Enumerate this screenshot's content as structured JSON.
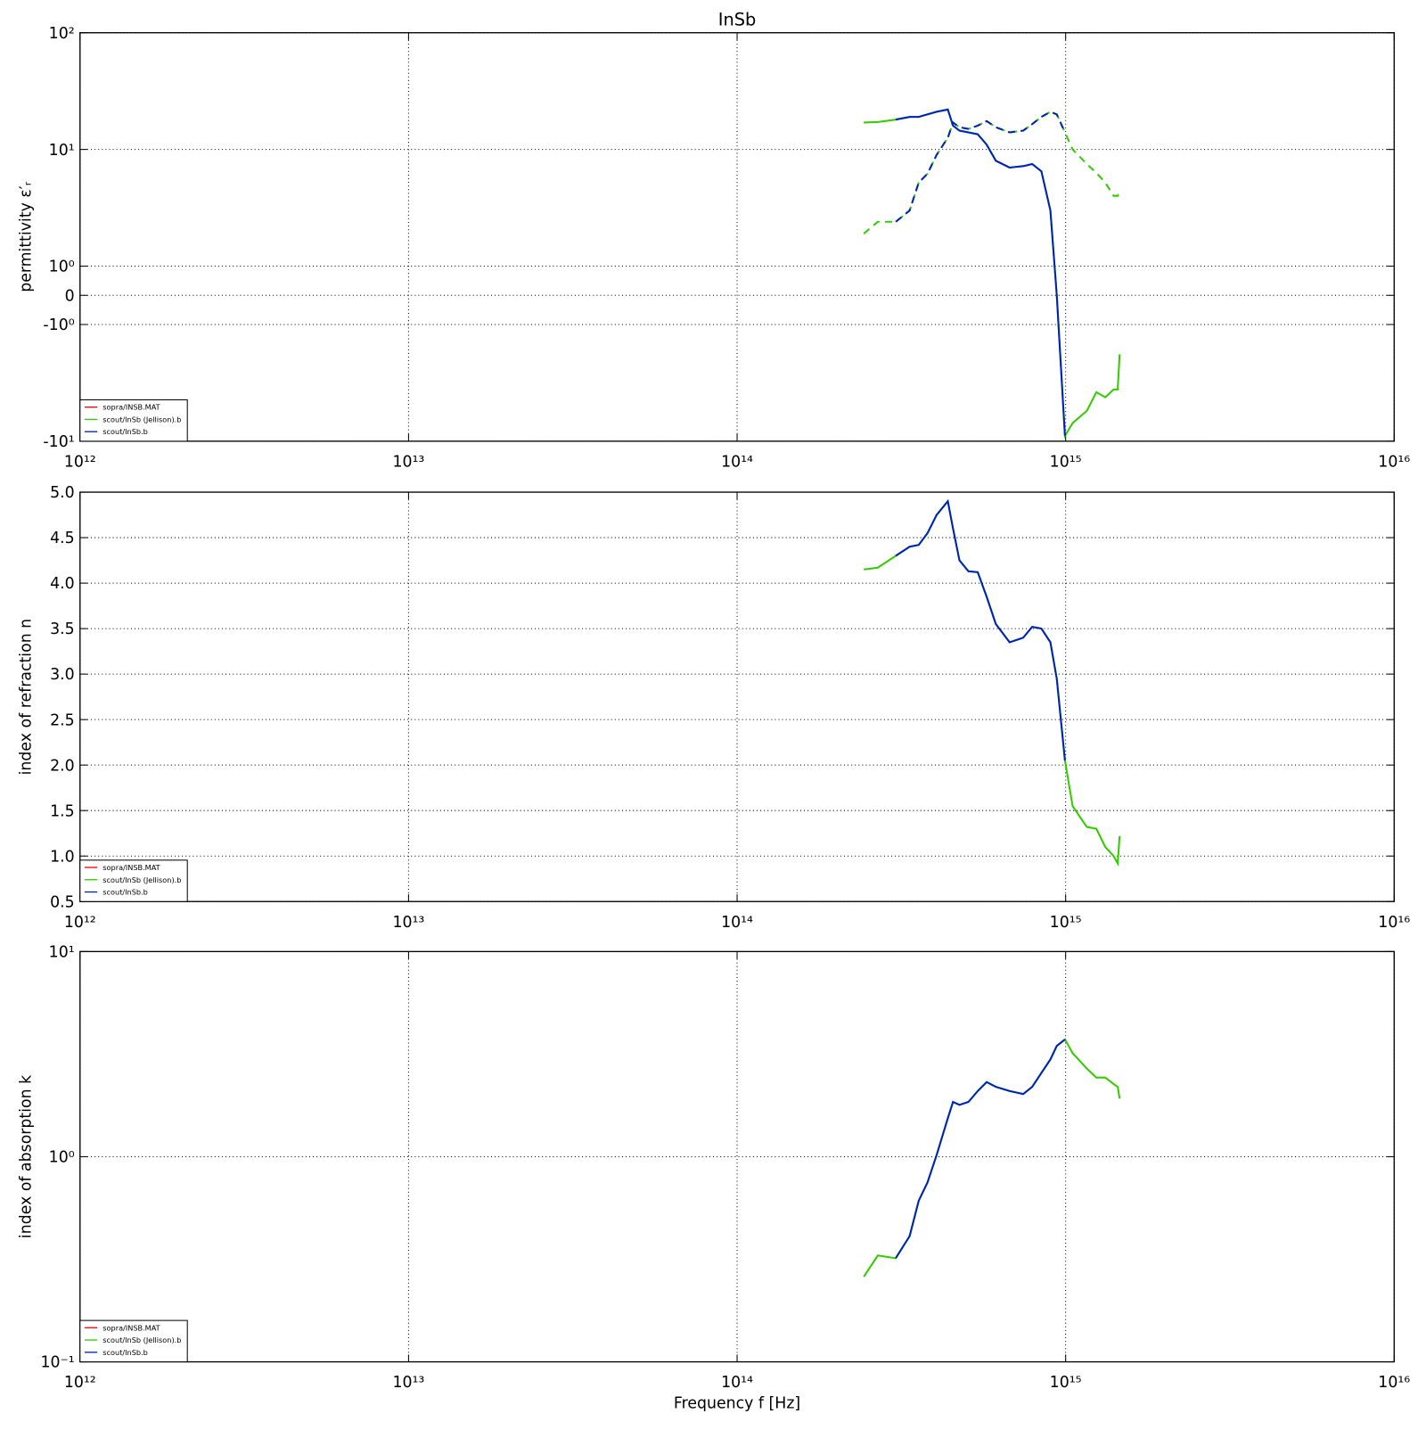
{
  "chart_data": [
    {
      "type": "line",
      "title": "InSb",
      "ylabel": "permittivity ε′ᵣ",
      "xscale": "log",
      "yscale": "symlog",
      "grid": true,
      "legend": "lower left",
      "xlim": [
        1000000000000.0,
        1e+16
      ],
      "xticks": [
        {
          "value": 1000000000000.0,
          "label": "10¹²"
        },
        {
          "value": 10000000000000.0,
          "label": "10¹³"
        },
        {
          "value": 100000000000000.0,
          "label": "10¹⁴"
        },
        {
          "value": 1000000000000000.0,
          "label": "10¹⁵"
        },
        {
          "value": 1e+16,
          "label": "10¹⁶"
        }
      ],
      "ylim": [
        -10,
        100
      ],
      "yticks": [
        {
          "value": 100,
          "label": "10²"
        },
        {
          "value": 10,
          "label": "10¹"
        },
        {
          "value": 1,
          "label": "10⁰"
        },
        0,
        {
          "value": -1,
          "label": "-10⁰"
        },
        {
          "value": -10,
          "label": "-10¹"
        }
      ],
      "imag_linestyle": "dashed",
      "series": [
        {
          "name": "sopra/INSB.MAT",
          "color": "#ff0000",
          "x": [],
          "values": [],
          "imag_values": []
        },
        {
          "name": "scout/InSb (Jellison).b",
          "color": "#33cc00",
          "x": [
            243000000000000.0,
            268000000000000.0,
            304000000000000.0,
            335000000000000.0,
            357000000000000.0,
            380000000000000.0,
            405000000000000.0,
            438000000000000.0,
            454000000000000.0,
            475000000000000.0,
            506000000000000.0,
            540000000000000.0,
            575000000000000.0,
            613000000000000.0,
            675000000000000.0,
            743000000000000.0,
            791000000000000.0,
            844000000000000.0,
            899000000000000.0,
            940000000000000.0,
            995000000000000.0,
            1050000000000000.0,
            1160000000000000.0,
            1240000000000000.0,
            1320000000000000.0,
            1400000000000000.0,
            1440000000000000.0,
            1460000000000000.0
          ],
          "values": [
            17,
            17.2,
            18,
            19,
            19,
            20,
            21,
            22,
            16,
            14.5,
            14,
            13.5,
            11,
            8,
            7,
            7.2,
            7.5,
            6.5,
            3,
            0,
            -9,
            -7,
            -5.5,
            -3.8,
            -4.2,
            -3.6,
            -3.6,
            -1.8
          ],
          "imag_values": [
            1.9,
            2.4,
            2.4,
            3,
            5.2,
            6.2,
            9,
            12.6,
            17,
            15.5,
            15,
            16,
            17.5,
            15.5,
            14,
            14.5,
            16.5,
            19,
            21,
            20,
            14,
            10,
            7.5,
            6.3,
            5.2,
            4,
            4,
            4.5
          ]
        },
        {
          "name": "scout/InSb.b",
          "color": "#0022bb",
          "x": [
            304000000000000.0,
            335000000000000.0,
            357000000000000.0,
            380000000000000.0,
            405000000000000.0,
            438000000000000.0,
            454000000000000.0,
            475000000000000.0,
            506000000000000.0,
            540000000000000.0,
            575000000000000.0,
            613000000000000.0,
            675000000000000.0,
            743000000000000.0,
            791000000000000.0,
            844000000000000.0,
            899000000000000.0,
            940000000000000.0,
            995000000000000.0
          ],
          "values": [
            18,
            19,
            19,
            20,
            21,
            22,
            16,
            14.5,
            14,
            13.5,
            11,
            8,
            7,
            7.2,
            7.5,
            6.5,
            3,
            0,
            -9
          ],
          "imag_values": [
            2.4,
            3,
            5.2,
            6.2,
            9,
            12.6,
            17,
            15.5,
            15,
            16,
            17.5,
            15.5,
            14,
            14.5,
            16.5,
            19,
            21,
            20,
            14
          ]
        }
      ]
    },
    {
      "type": "line",
      "ylabel": "index of refraction n",
      "xscale": "log",
      "yscale": "linear",
      "grid": true,
      "legend": "lower left",
      "xlim": [
        1000000000000.0,
        1e+16
      ],
      "xticks": [
        {
          "value": 1000000000000.0,
          "label": "10¹²"
        },
        {
          "value": 10000000000000.0,
          "label": "10¹³"
        },
        {
          "value": 100000000000000.0,
          "label": "10¹⁴"
        },
        {
          "value": 1000000000000000.0,
          "label": "10¹⁵"
        },
        {
          "value": 1e+16,
          "label": "10¹⁶"
        }
      ],
      "ylim": [
        0.5,
        5
      ],
      "yticks": [
        {
          "value": 5,
          "label": "5.0"
        },
        4.5,
        {
          "value": 4,
          "label": "4.0"
        },
        3.5,
        {
          "value": 3,
          "label": "3.0"
        },
        2.5,
        {
          "value": 2,
          "label": "2.0"
        },
        1.5,
        {
          "value": 1,
          "label": "1.0"
        },
        0.5
      ],
      "series": [
        {
          "name": "sopra/INSB.MAT",
          "color": "#ff0000",
          "x": [],
          "values": []
        },
        {
          "name": "scout/InSb (Jellison).b",
          "color": "#33cc00",
          "x": [
            243000000000000.0,
            268000000000000.0,
            304000000000000.0,
            335000000000000.0,
            357000000000000.0,
            380000000000000.0,
            405000000000000.0,
            438000000000000.0,
            454000000000000.0,
            475000000000000.0,
            506000000000000.0,
            540000000000000.0,
            575000000000000.0,
            613000000000000.0,
            675000000000000.0,
            743000000000000.0,
            791000000000000.0,
            844000000000000.0,
            899000000000000.0,
            940000000000000.0,
            995000000000000.0,
            1050000000000000.0,
            1160000000000000.0,
            1240000000000000.0,
            1320000000000000.0,
            1400000000000000.0,
            1440000000000000.0,
            1460000000000000.0
          ],
          "values": [
            4.15,
            4.17,
            4.3,
            4.4,
            4.42,
            4.55,
            4.75,
            4.9,
            4.6,
            4.25,
            4.13,
            4.12,
            3.85,
            3.55,
            3.35,
            3.4,
            3.52,
            3.5,
            3.35,
            2.95,
            2.05,
            1.55,
            1.32,
            1.3,
            1.1,
            1,
            0.92,
            1.22
          ]
        },
        {
          "name": "scout/InSb.b",
          "color": "#0022bb",
          "x": [
            304000000000000.0,
            335000000000000.0,
            357000000000000.0,
            380000000000000.0,
            405000000000000.0,
            438000000000000.0,
            454000000000000.0,
            475000000000000.0,
            506000000000000.0,
            540000000000000.0,
            575000000000000.0,
            613000000000000.0,
            675000000000000.0,
            743000000000000.0,
            791000000000000.0,
            844000000000000.0,
            899000000000000.0,
            940000000000000.0,
            995000000000000.0
          ],
          "values": [
            4.3,
            4.4,
            4.42,
            4.55,
            4.75,
            4.9,
            4.6,
            4.25,
            4.13,
            4.12,
            3.85,
            3.55,
            3.35,
            3.4,
            3.52,
            3.5,
            3.35,
            2.95,
            2.05
          ]
        }
      ]
    },
    {
      "type": "line",
      "ylabel": "index of absorption k",
      "xlabel": "Frequency f [Hz]",
      "xscale": "log",
      "yscale": "log",
      "grid": true,
      "legend": "lower left",
      "xlim": [
        1000000000000.0,
        1e+16
      ],
      "xticks": [
        {
          "value": 1000000000000.0,
          "label": "10¹²"
        },
        {
          "value": 10000000000000.0,
          "label": "10¹³"
        },
        {
          "value": 100000000000000.0,
          "label": "10¹⁴"
        },
        {
          "value": 1000000000000000.0,
          "label": "10¹⁵"
        },
        {
          "value": 1e+16,
          "label": "10¹⁶"
        }
      ],
      "ylim": [
        0.1,
        10
      ],
      "yticks": [
        {
          "value": 10,
          "label": "10¹"
        },
        {
          "value": 1,
          "label": "10⁰"
        },
        {
          "value": 0.1,
          "label": "10⁻¹"
        }
      ],
      "series": [
        {
          "name": "sopra/INSB.MAT",
          "color": "#ff0000",
          "x": [],
          "values": []
        },
        {
          "name": "scout/InSb (Jellison).b",
          "color": "#33cc00",
          "x": [
            243000000000000.0,
            268000000000000.0,
            304000000000000.0,
            335000000000000.0,
            357000000000000.0,
            380000000000000.0,
            405000000000000.0,
            438000000000000.0,
            454000000000000.0,
            475000000000000.0,
            506000000000000.0,
            540000000000000.0,
            575000000000000.0,
            613000000000000.0,
            675000000000000.0,
            743000000000000.0,
            791000000000000.0,
            844000000000000.0,
            899000000000000.0,
            940000000000000.0,
            995000000000000.0,
            1050000000000000.0,
            1160000000000000.0,
            1240000000000000.0,
            1320000000000000.0,
            1400000000000000.0,
            1440000000000000.0,
            1460000000000000.0
          ],
          "values": [
            0.26,
            0.33,
            0.32,
            0.41,
            0.61,
            0.75,
            1.02,
            1.54,
            1.85,
            1.79,
            1.85,
            2.09,
            2.31,
            2.19,
            2.09,
            2.02,
            2.19,
            2.56,
            2.98,
            3.47,
            3.73,
            3.2,
            2.69,
            2.43,
            2.43,
            2.26,
            2.19,
            1.92
          ]
        },
        {
          "name": "scout/InSb.b",
          "color": "#0022bb",
          "x": [
            304000000000000.0,
            335000000000000.0,
            357000000000000.0,
            380000000000000.0,
            405000000000000.0,
            438000000000000.0,
            454000000000000.0,
            475000000000000.0,
            506000000000000.0,
            540000000000000.0,
            575000000000000.0,
            613000000000000.0,
            675000000000000.0,
            743000000000000.0,
            791000000000000.0,
            844000000000000.0,
            899000000000000.0,
            940000000000000.0,
            995000000000000.0
          ],
          "values": [
            0.32,
            0.41,
            0.61,
            0.75,
            1.02,
            1.54,
            1.85,
            1.79,
            1.85,
            2.09,
            2.31,
            2.19,
            2.09,
            2.02,
            2.19,
            2.56,
            2.98,
            3.47,
            3.73
          ]
        }
      ]
    }
  ]
}
